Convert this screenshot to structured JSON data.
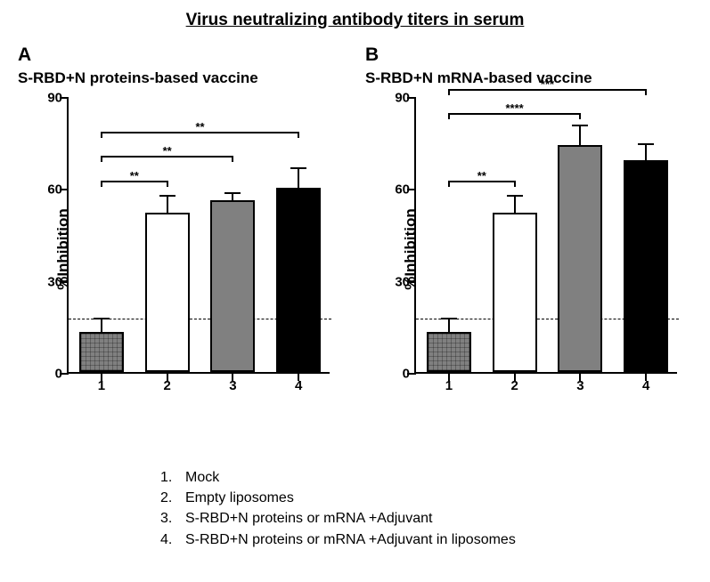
{
  "main_title": "Virus neutralizing antibody titers in serum",
  "main_title_fontsize": 19,
  "panels": [
    {
      "letter": "A",
      "subtitle": "S-RBD+N proteins-based vaccine",
      "letter_fontsize": 21,
      "subtitle_fontsize": 17,
      "chart": {
        "type": "bar",
        "ylabel": "%Inhibition",
        "ylabel_fontsize": 17,
        "ylim": [
          0,
          90
        ],
        "yticks": [
          0,
          30,
          60,
          90
        ],
        "ytick_fontsize": 15,
        "xticks": [
          "1",
          "2",
          "3",
          "4"
        ],
        "xtick_fontsize": 15,
        "bar_width": 0.68,
        "hline_y": 18,
        "bars": [
          {
            "x": 1,
            "value": 13,
            "err": 5,
            "fill": "#808080",
            "hatched": true
          },
          {
            "x": 2,
            "value": 52,
            "err": 6,
            "fill": "#ffffff",
            "hatched": false
          },
          {
            "x": 3,
            "value": 56,
            "err": 3,
            "fill": "#808080",
            "hatched": false
          },
          {
            "x": 4,
            "value": 60,
            "err": 7,
            "fill": "#000000",
            "hatched": false
          }
        ],
        "sig": [
          {
            "from": 1,
            "to": 2,
            "y": 63,
            "label": "**"
          },
          {
            "from": 1,
            "to": 3,
            "y": 71,
            "label": "**"
          },
          {
            "from": 1,
            "to": 4,
            "y": 79,
            "label": "**"
          }
        ],
        "sig_fontsize": 13,
        "axis_color": "#000000",
        "background_color": "#ffffff"
      }
    },
    {
      "letter": "B",
      "subtitle": "S-RBD+N mRNA-based vaccine",
      "letter_fontsize": 21,
      "subtitle_fontsize": 17,
      "chart": {
        "type": "bar",
        "ylabel": "%Inhibition",
        "ylabel_fontsize": 17,
        "ylim": [
          0,
          90
        ],
        "yticks": [
          0,
          30,
          60,
          90
        ],
        "ytick_fontsize": 15,
        "xticks": [
          "1",
          "2",
          "3",
          "4"
        ],
        "xtick_fontsize": 15,
        "bar_width": 0.68,
        "hline_y": 18,
        "bars": [
          {
            "x": 1,
            "value": 13,
            "err": 5,
            "fill": "#808080",
            "hatched": true
          },
          {
            "x": 2,
            "value": 52,
            "err": 6,
            "fill": "#ffffff",
            "hatched": false
          },
          {
            "x": 3,
            "value": 74,
            "err": 7,
            "fill": "#808080",
            "hatched": false
          },
          {
            "x": 4,
            "value": 69,
            "err": 6,
            "fill": "#000000",
            "hatched": false
          }
        ],
        "sig": [
          {
            "from": 1,
            "to": 2,
            "y": 63,
            "label": "**"
          },
          {
            "from": 1,
            "to": 3,
            "y": 85,
            "label": "****"
          },
          {
            "from": 1,
            "to": 4,
            "y": 93,
            "label": "***"
          }
        ],
        "sig_fontsize": 13,
        "axis_color": "#000000",
        "background_color": "#ffffff"
      }
    }
  ],
  "legend": {
    "fontsize": 16,
    "items": [
      {
        "n": "1.",
        "text": "Mock"
      },
      {
        "n": "2.",
        "text": "Empty liposomes"
      },
      {
        "n": "3.",
        "text": "S-RBD+N proteins or mRNA +Adjuvant"
      },
      {
        "n": "4.",
        "text": "S-RBD+N proteins or mRNA +Adjuvant in liposomes"
      }
    ]
  }
}
